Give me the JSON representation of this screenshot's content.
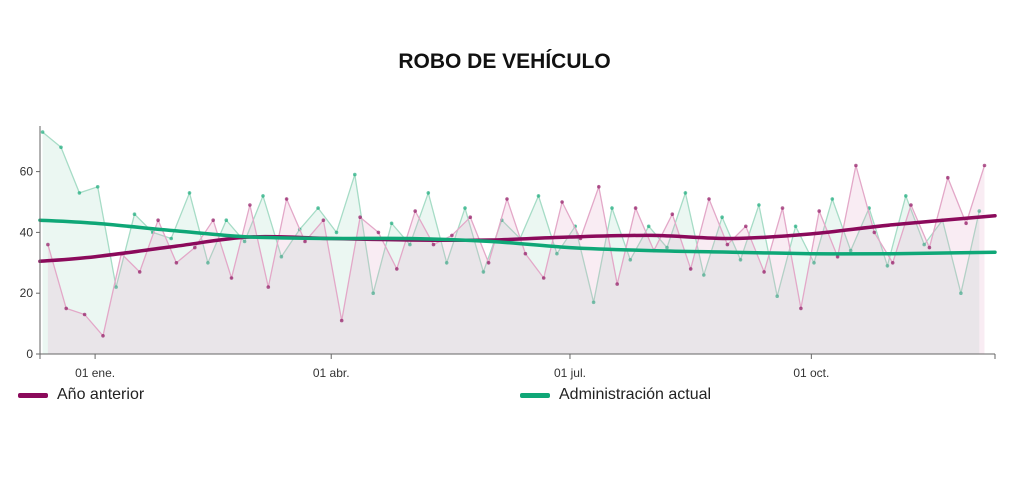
{
  "chart_data": {
    "type": "line",
    "title": "ROBO DE VEHÍCULO",
    "ylim": [
      0,
      75
    ],
    "y_ticks": [
      "0",
      "20",
      "40",
      "60"
    ],
    "x_range": [
      "2018-12-11",
      "2019-12-10"
    ],
    "x_ticks": [
      {
        "date": "2019-01-01",
        "label": "01 ene."
      },
      {
        "date": "2019-04-01",
        "label": "01 abr."
      },
      {
        "date": "2019-07-01",
        "label": "01 jul."
      },
      {
        "date": "2019-10-01",
        "label": "01 oct."
      }
    ],
    "grid": false,
    "legend_position": "bottom",
    "series": [
      {
        "name": "Año anterior",
        "color": "#8b0a5b",
        "daily_color": "#e3a8c8",
        "trend": {
          "x": [
            "2018-12-11",
            "2019-01-01",
            "2019-02-01",
            "2019-03-01",
            "2019-04-01",
            "2019-05-01",
            "2019-06-01",
            "2019-07-01",
            "2019-08-01",
            "2019-09-01",
            "2019-10-01",
            "2019-11-01",
            "2019-12-10"
          ],
          "y": [
            30.5,
            32,
            35.5,
            38.5,
            38,
            37.5,
            37.5,
            38.5,
            39,
            38,
            39.5,
            42.5,
            45.5
          ]
        },
        "daily_sample": {
          "x": [
            "2018-12-14",
            "2018-12-21",
            "2018-12-28",
            "2019-01-04",
            "2019-01-11",
            "2019-01-18",
            "2019-01-25",
            "2019-02-01",
            "2019-02-08",
            "2019-02-15",
            "2019-02-22",
            "2019-03-01",
            "2019-03-08",
            "2019-03-15",
            "2019-03-22",
            "2019-03-29",
            "2019-04-05",
            "2019-04-12",
            "2019-04-19",
            "2019-04-26",
            "2019-05-03",
            "2019-05-10",
            "2019-05-17",
            "2019-05-24",
            "2019-05-31",
            "2019-06-07",
            "2019-06-14",
            "2019-06-21",
            "2019-06-28",
            "2019-07-05",
            "2019-07-12",
            "2019-07-19",
            "2019-07-26",
            "2019-08-02",
            "2019-08-09",
            "2019-08-16",
            "2019-08-23",
            "2019-08-30",
            "2019-09-06",
            "2019-09-13",
            "2019-09-20",
            "2019-09-27",
            "2019-10-04",
            "2019-10-11",
            "2019-10-18",
            "2019-10-25",
            "2019-11-01",
            "2019-11-08",
            "2019-11-15",
            "2019-11-22",
            "2019-11-29",
            "2019-12-06"
          ],
          "y": [
            36,
            15,
            13,
            6,
            33,
            27,
            44,
            30,
            35,
            44,
            25,
            49,
            22,
            51,
            37,
            44,
            11,
            45,
            40,
            28,
            47,
            36,
            39,
            45,
            30,
            51,
            33,
            25,
            50,
            38,
            55,
            23,
            48,
            34,
            46,
            28,
            51,
            36,
            42,
            27,
            48,
            15,
            47,
            32,
            62,
            40,
            30,
            49,
            35,
            58,
            43,
            62
          ]
        }
      },
      {
        "name": "Administración actual",
        "color": "#0fa777",
        "daily_color": "#a6dcc6",
        "trend": {
          "x": [
            "2018-12-11",
            "2019-01-01",
            "2019-02-01",
            "2019-03-01",
            "2019-04-01",
            "2019-05-01",
            "2019-06-01",
            "2019-07-01",
            "2019-08-01",
            "2019-09-01",
            "2019-10-01",
            "2019-11-01",
            "2019-12-10"
          ],
          "y": [
            44,
            43,
            40.5,
            38.5,
            38,
            38,
            37,
            35,
            34,
            33.5,
            33,
            33,
            33.5
          ]
        },
        "daily_sample": {
          "x": [
            "2018-12-12",
            "2018-12-19",
            "2018-12-26",
            "2019-01-02",
            "2019-01-09",
            "2019-01-16",
            "2019-01-23",
            "2019-01-30",
            "2019-02-06",
            "2019-02-13",
            "2019-02-20",
            "2019-02-27",
            "2019-03-06",
            "2019-03-13",
            "2019-03-20",
            "2019-03-27",
            "2019-04-03",
            "2019-04-10",
            "2019-04-17",
            "2019-04-24",
            "2019-05-01",
            "2019-05-08",
            "2019-05-15",
            "2019-05-22",
            "2019-05-29",
            "2019-06-05",
            "2019-06-12",
            "2019-06-19",
            "2019-06-26",
            "2019-07-03",
            "2019-07-10",
            "2019-07-17",
            "2019-07-24",
            "2019-07-31",
            "2019-08-07",
            "2019-08-14",
            "2019-08-21",
            "2019-08-28",
            "2019-09-04",
            "2019-09-11",
            "2019-09-18",
            "2019-09-25",
            "2019-10-02",
            "2019-10-09",
            "2019-10-16",
            "2019-10-23",
            "2019-10-30",
            "2019-11-06",
            "2019-11-13",
            "2019-11-20",
            "2019-11-27",
            "2019-12-04"
          ],
          "y": [
            73,
            68,
            53,
            55,
            22,
            46,
            40,
            38,
            53,
            30,
            44,
            37,
            52,
            32,
            41,
            48,
            40,
            59,
            20,
            43,
            36,
            53,
            30,
            48,
            27,
            44,
            38,
            52,
            33,
            42,
            17,
            48,
            31,
            42,
            35,
            53,
            26,
            45,
            31,
            49,
            19,
            42,
            30,
            51,
            34,
            48,
            29,
            52,
            36,
            44,
            20,
            47
          ]
        }
      }
    ]
  }
}
